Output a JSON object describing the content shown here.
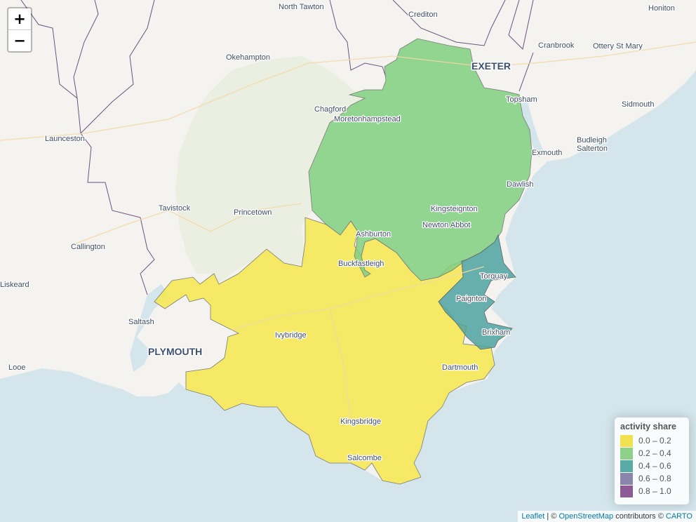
{
  "zoom": {
    "in_label": "+",
    "out_label": "−"
  },
  "legend": {
    "title": "activity share",
    "items": [
      {
        "label": "0.0 – 0.2",
        "color": "#f0e24f"
      },
      {
        "label": "0.2 – 0.4",
        "color": "#8fd08a"
      },
      {
        "label": "0.4 – 0.6",
        "color": "#5aaba8"
      },
      {
        "label": "0.6 – 0.8",
        "color": "#8a86ab"
      },
      {
        "label": "0.8 – 1.0",
        "color": "#8c5a94"
      }
    ]
  },
  "regions": {
    "south_hams": {
      "color": "#f5e64d"
    },
    "teignbridge": {
      "color": "#7fcf80"
    },
    "torbay": {
      "color": "#4da2a0"
    },
    "dartmoor": {
      "color": "#e7eedc"
    }
  },
  "places": {
    "north_tawton": "North Tawton",
    "crediton": "Crediton",
    "honiton": "Honiton",
    "okehampton": "Okehampton",
    "exeter": "EXETER",
    "cranbrook": "Cranbrook",
    "ottery": "Ottery St Mary",
    "chagford": "Chagford",
    "moretonhampstead": "Moretonhampstead",
    "topsham": "Topsham",
    "sidmouth": "Sidmouth",
    "launceston": "Launceston",
    "exmouth": "Exmouth",
    "budleigh_1": "Budleigh",
    "budleigh_2": "Salterton",
    "dawlish": "Dawlish",
    "tavistock": "Tavistock",
    "princetown": "Princetown",
    "kingsteignton": "Kingsteignton",
    "callington": "Callington",
    "ashburton": "Ashburton",
    "newton_abbot": "Newton Abbot",
    "buckfastleigh": "Buckfastleigh",
    "torquay": "Torquay",
    "liskeard": "Liskeard",
    "paignton": "Paignton",
    "saltash": "Saltash",
    "ivybridge": "Ivybridge",
    "brixham": "Brixham",
    "plymouth": "PLYMOUTH",
    "looe": "Looe",
    "dartmouth": "Dartmouth",
    "kingsbridge": "Kingsbridge",
    "salcombe": "Salcombe"
  },
  "attribution": {
    "leaflet": "Leaflet",
    "sep": " | © ",
    "osm": "OpenStreetMap",
    "mid": " contributors © ",
    "carto": "CARTO"
  }
}
